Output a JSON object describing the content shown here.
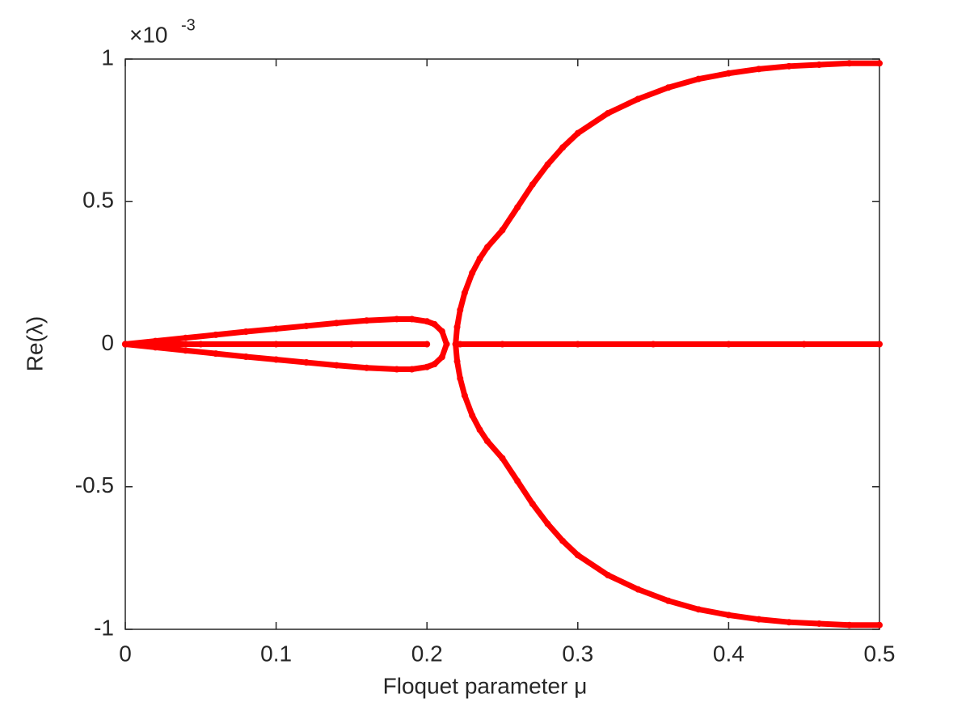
{
  "chart_data": {
    "type": "scatter",
    "xlabel": "Floquet parameter μ",
    "ylabel": "Re(λ)",
    "y_multiplier": "×10",
    "y_multiplier_exponent": "-3",
    "xlim": [
      0,
      0.5
    ],
    "ylim": [
      -1,
      1
    ],
    "xticks": [
      0,
      0.1,
      0.2,
      0.3,
      0.4,
      0.5
    ],
    "yticks": [
      -1,
      -0.5,
      0,
      0.5,
      1
    ],
    "grid": false,
    "series": [
      {
        "color": "#ff0000",
        "x": [
          0.219,
          0.22,
          0.222,
          0.225,
          0.23,
          0.235,
          0.24,
          0.25,
          0.26,
          0.27,
          0.28,
          0.29,
          0.3,
          0.32,
          0.34,
          0.36,
          0.38,
          0.4,
          0.42,
          0.44,
          0.46,
          0.48,
          0.5
        ],
        "values": [
          0.0,
          0.06,
          0.12,
          0.18,
          0.25,
          0.3,
          0.34,
          0.4,
          0.48,
          0.56,
          0.63,
          0.69,
          0.74,
          0.81,
          0.86,
          0.9,
          0.93,
          0.95,
          0.965,
          0.975,
          0.98,
          0.985,
          0.985
        ]
      },
      {
        "color": "#ff0000",
        "x": [
          0.219,
          0.22,
          0.222,
          0.225,
          0.23,
          0.235,
          0.24,
          0.25,
          0.26,
          0.27,
          0.28,
          0.29,
          0.3,
          0.32,
          0.34,
          0.36,
          0.38,
          0.4,
          0.42,
          0.44,
          0.46,
          0.48,
          0.5
        ],
        "values": [
          0.0,
          -0.06,
          -0.12,
          -0.18,
          -0.25,
          -0.3,
          -0.34,
          -0.4,
          -0.48,
          -0.56,
          -0.63,
          -0.69,
          -0.74,
          -0.81,
          -0.86,
          -0.9,
          -0.93,
          -0.95,
          -0.965,
          -0.975,
          -0.98,
          -0.985,
          -0.985
        ]
      },
      {
        "color": "#ff0000",
        "x": [
          0,
          0.02,
          0.04,
          0.06,
          0.08,
          0.1,
          0.12,
          0.14,
          0.16,
          0.18,
          0.19,
          0.2,
          0.205,
          0.21,
          0.213
        ],
        "values": [
          0,
          0.011,
          0.022,
          0.033,
          0.044,
          0.054,
          0.064,
          0.074,
          0.083,
          0.088,
          0.088,
          0.08,
          0.07,
          0.045,
          0
        ]
      },
      {
        "color": "#ff0000",
        "x": [
          0,
          0.02,
          0.04,
          0.06,
          0.08,
          0.1,
          0.12,
          0.14,
          0.16,
          0.18,
          0.19,
          0.2,
          0.205,
          0.21,
          0.213
        ],
        "values": [
          0,
          -0.011,
          -0.022,
          -0.033,
          -0.044,
          -0.054,
          -0.064,
          -0.074,
          -0.083,
          -0.088,
          -0.088,
          -0.08,
          -0.07,
          -0.045,
          0
        ]
      },
      {
        "color": "#ff0000",
        "x": [
          0,
          0.05,
          0.1,
          0.15,
          0.2,
          0.21,
          0.222,
          0.25,
          0.3,
          0.35,
          0.4,
          0.45,
          0.5
        ],
        "values": [
          0,
          0,
          0,
          0,
          0,
          null,
          0,
          0,
          0,
          0,
          0,
          0,
          0
        ]
      }
    ]
  }
}
